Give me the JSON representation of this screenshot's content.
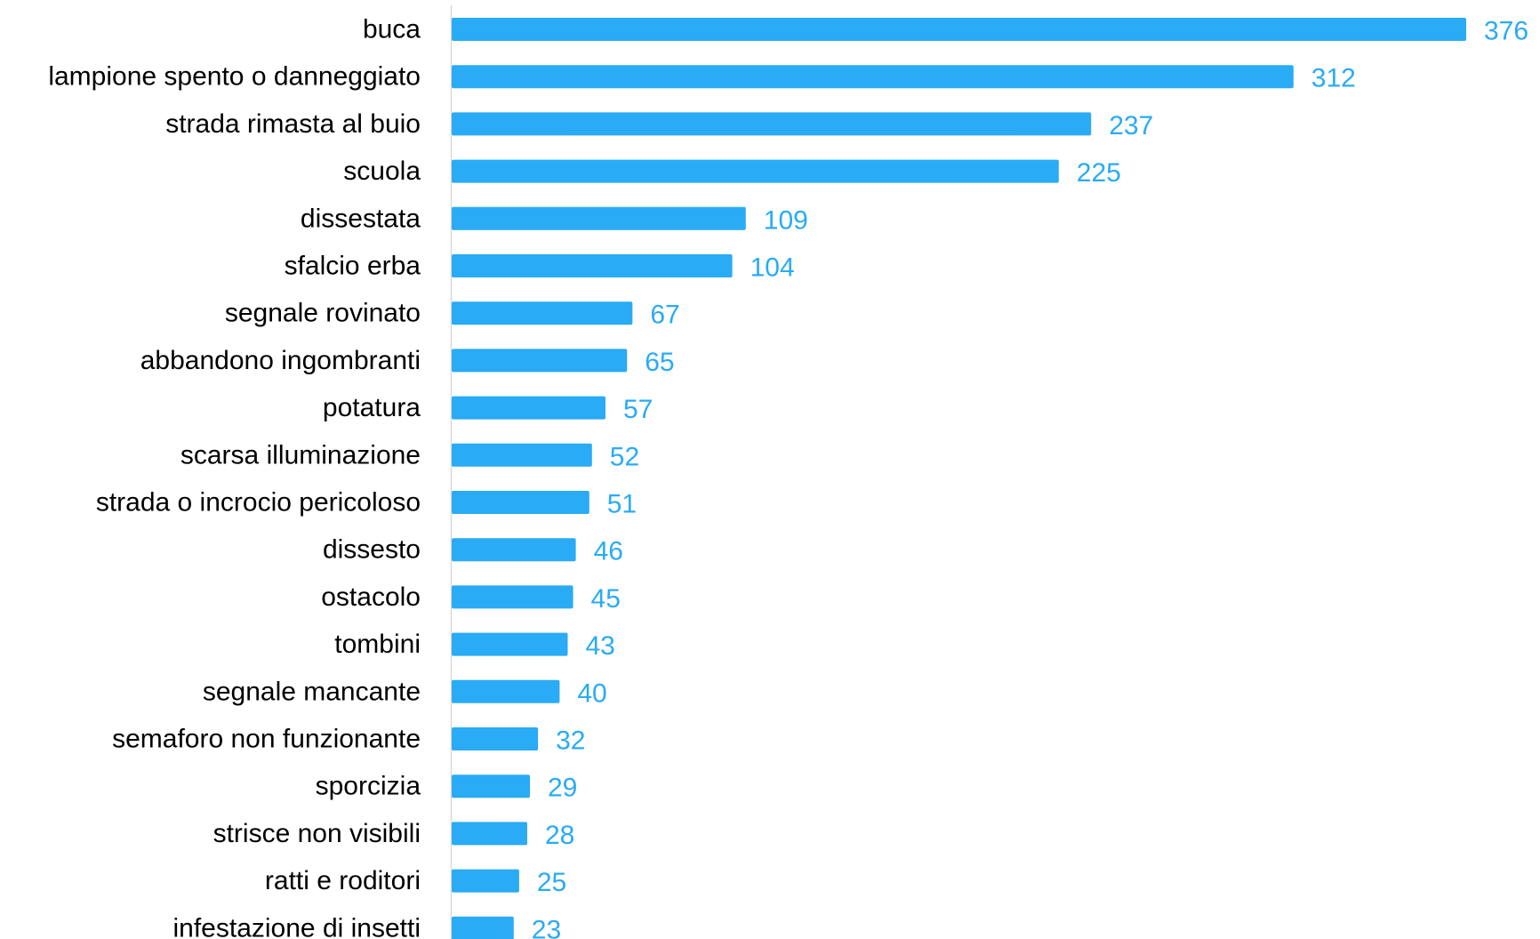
{
  "chart_data": {
    "type": "bar",
    "orientation": "horizontal",
    "categories": [
      "buca",
      "lampione spento o danneggiato",
      "strada rimasta al buio",
      "scuola",
      "dissestata",
      "sfalcio erba",
      "segnale rovinato",
      "abbandono ingombranti",
      "potatura",
      "scarsa illuminazione",
      "strada o incrocio pericoloso",
      "dissesto",
      "ostacolo",
      "tombini",
      "segnale mancante",
      "semaforo non funzionante",
      "sporcizia",
      "strisce non visibili",
      "ratti e roditori",
      "infestazione di insetti"
    ],
    "values": [
      376,
      312,
      237,
      225,
      109,
      104,
      67,
      65,
      57,
      52,
      51,
      46,
      45,
      43,
      40,
      32,
      29,
      28,
      25,
      23
    ],
    "data_labels": [
      "376",
      "312",
      "237",
      "225",
      "109",
      "104",
      "67",
      "65",
      "57",
      "52",
      "51",
      "46",
      "45",
      "43",
      "40",
      "32",
      "29",
      "28",
      "25",
      "23"
    ],
    "xlim": [
      0,
      376
    ],
    "title": "",
    "xlabel": "",
    "ylabel": "",
    "grid": false,
    "legend": "none",
    "colors": {
      "bar": "#29abf5",
      "value_label": "#29abf5",
      "category_label": "#000000",
      "axis_line": "#d9d9d9"
    }
  }
}
